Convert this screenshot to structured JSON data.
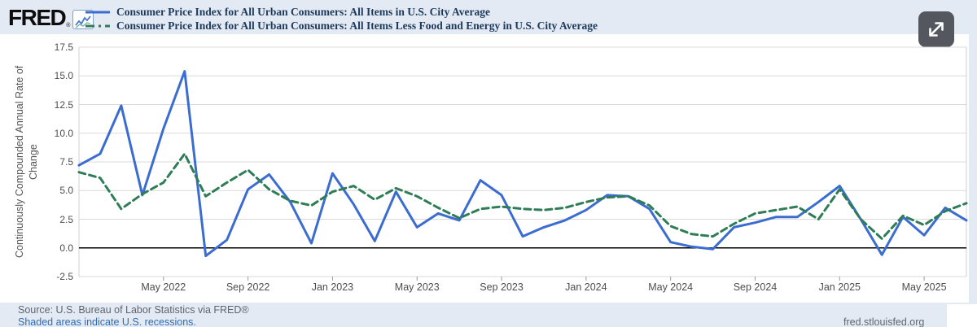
{
  "header": {
    "logo_text": "FRED",
    "reg_mark": "®"
  },
  "colors": {
    "series1": "#3b6cd0",
    "series2": "#2e7d57",
    "grid": "#d9d9d9",
    "plot_border": "#cfd0d1",
    "zero_line": "#000000",
    "page_bg": "#e4eaf3",
    "legend_text": "#1c3a5c",
    "button_bg": "#54585e"
  },
  "chart_data": {
    "type": "line",
    "title": "",
    "xlabel": "",
    "ylabel": "Continuously Compounded Annual Rate of Change",
    "ylim": [
      -2.5,
      17.5
    ],
    "ytick_step": 2.5,
    "grid": true,
    "legend_position": "top-left",
    "frequency": "monthly",
    "x": [
      "2022-01",
      "2022-02",
      "2022-03",
      "2022-04",
      "2022-05",
      "2022-06",
      "2022-07",
      "2022-08",
      "2022-09",
      "2022-10",
      "2022-11",
      "2022-12",
      "2023-01",
      "2023-02",
      "2023-03",
      "2023-04",
      "2023-05",
      "2023-06",
      "2023-07",
      "2023-08",
      "2023-09",
      "2023-10",
      "2023-11",
      "2023-12",
      "2024-01",
      "2024-02",
      "2024-03",
      "2024-04",
      "2024-05",
      "2024-06",
      "2024-07",
      "2024-08",
      "2024-09",
      "2024-10",
      "2024-11",
      "2024-12",
      "2025-01",
      "2025-02",
      "2025-03",
      "2025-04",
      "2025-05",
      "2025-06",
      "2025-07"
    ],
    "x_tick_labels": [
      "May 2022",
      "Sep 2022",
      "Jan 2023",
      "May 2023",
      "Sep 2023",
      "Jan 2024",
      "May 2024",
      "Sep 2024",
      "Jan 2025",
      "May 2025"
    ],
    "x_tick_indices": [
      4,
      8,
      12,
      16,
      20,
      24,
      28,
      32,
      36,
      40
    ],
    "series": [
      {
        "name": "Consumer Price Index for All Urban Consumers: All Items in U.S. City Average",
        "color": "#3b6cd0",
        "style": "solid",
        "values": [
          7.2,
          8.2,
          12.4,
          4.6,
          10.4,
          15.4,
          -0.7,
          0.7,
          5.1,
          6.4,
          4.0,
          0.4,
          6.5,
          3.8,
          0.6,
          4.9,
          1.8,
          3.0,
          2.4,
          5.9,
          4.6,
          1.0,
          1.8,
          2.4,
          3.3,
          4.6,
          4.5,
          3.4,
          0.5,
          0.1,
          -0.1,
          1.8,
          2.2,
          2.7,
          2.7,
          4.0,
          5.4,
          2.5,
          -0.6,
          2.7,
          1.1,
          3.5,
          2.4
        ]
      },
      {
        "name": "Consumer Price Index for All Urban Consumers: All Items Less Food and Energy in U.S. City Average",
        "color": "#2e7d57",
        "style": "dashed",
        "values": [
          6.6,
          6.1,
          3.4,
          4.7,
          5.7,
          8.2,
          4.5,
          5.7,
          6.8,
          5.1,
          4.1,
          3.7,
          4.9,
          5.4,
          4.2,
          5.2,
          4.5,
          3.5,
          2.6,
          3.4,
          3.6,
          3.4,
          3.3,
          3.5,
          4.0,
          4.4,
          4.5,
          3.7,
          1.9,
          1.2,
          1.0,
          2.1,
          3.0,
          3.3,
          3.6,
          2.5,
          5.1,
          2.5,
          0.8,
          2.8,
          2.0,
          3.2,
          3.9
        ]
      }
    ]
  },
  "footer": {
    "source": "Source: U.S. Bureau of Labor Statistics via FRED®",
    "recession_note": "Shaded areas indicate U.S. recessions.",
    "site": "fred.stlouisfed.org"
  }
}
